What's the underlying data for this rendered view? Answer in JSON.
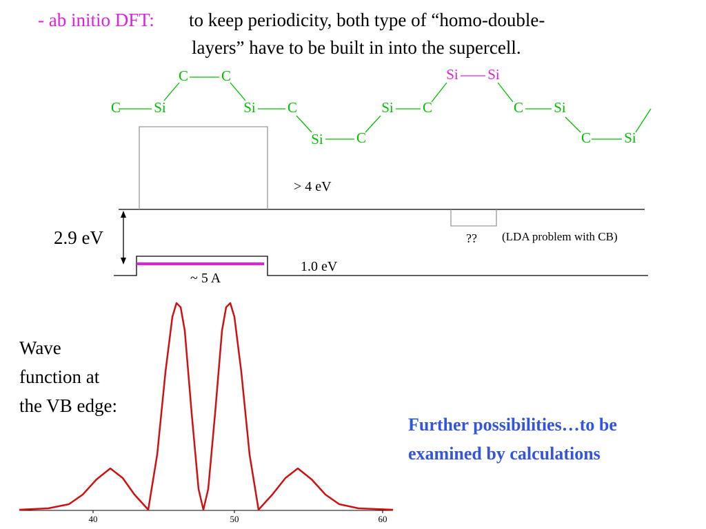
{
  "header": {
    "prefix": "- ab initio DFT:",
    "line1": "to keep periodicity, both type of “homo-double-",
    "line2": "layers” have to be built in into the supercell."
  },
  "atoms": [
    "C",
    "Si",
    "C",
    "C",
    "Si",
    "C",
    "Si",
    "C",
    "Si",
    "C",
    "Si",
    "Si",
    "C",
    "Si",
    "C",
    "Si"
  ],
  "diagram": {
    "barrier_label": "> 4 eV",
    "gap_label": "2.9 eV",
    "well_label": "~ 5 A",
    "offset_label": "1.0 eV",
    "unknown_label": "??",
    "note": "(LDA problem with CB)"
  },
  "wavefunction": {
    "caption": [
      "Wave",
      "function at",
      "the VB edge:"
    ],
    "x_tick_labels": [
      "40",
      "50",
      "60"
    ]
  },
  "remark": [
    "Further possibilities…to be",
    "examined by calculations"
  ]
}
